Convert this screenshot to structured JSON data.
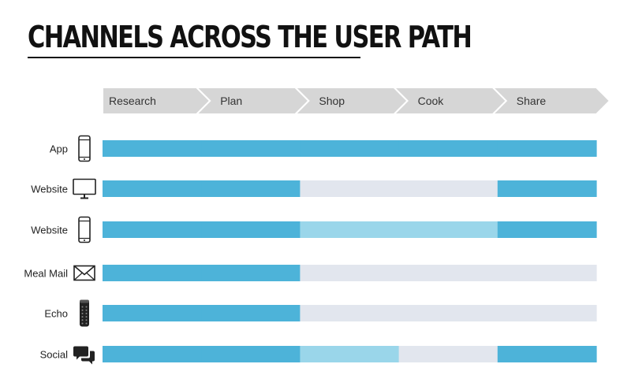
{
  "title": "CHANNELS ACROSS THE USER PATH",
  "stages": [
    "Research",
    "Plan",
    "Shop",
    "Cook",
    "Share"
  ],
  "colors": {
    "full": "#4db3d9",
    "partial": "#9ad6ea",
    "none": "#e2e6ee",
    "stage_fill": "#d6d6d6",
    "stage_border": "#ffffff"
  },
  "channels": [
    {
      "label": "App",
      "icon": "phone-icon",
      "coverage": [
        "full",
        "full",
        "full",
        "full",
        "full"
      ]
    },
    {
      "label": "Website",
      "icon": "desktop-icon",
      "coverage": [
        "full",
        "full",
        "none",
        "none",
        "full"
      ]
    },
    {
      "label": "Website",
      "icon": "phone-icon",
      "coverage": [
        "full",
        "full",
        "partial",
        "partial",
        "full"
      ]
    },
    {
      "label": "Meal Mail",
      "icon": "envelope-icon",
      "coverage": [
        "full",
        "full",
        "none",
        "none",
        "none"
      ]
    },
    {
      "label": "Echo",
      "icon": "echo-device-icon",
      "coverage": [
        "full",
        "full",
        "none",
        "none",
        "none"
      ]
    },
    {
      "label": "Social",
      "icon": "chat-bubbles-icon",
      "coverage": [
        "full",
        "full",
        "partial",
        "none",
        "full"
      ]
    }
  ]
}
